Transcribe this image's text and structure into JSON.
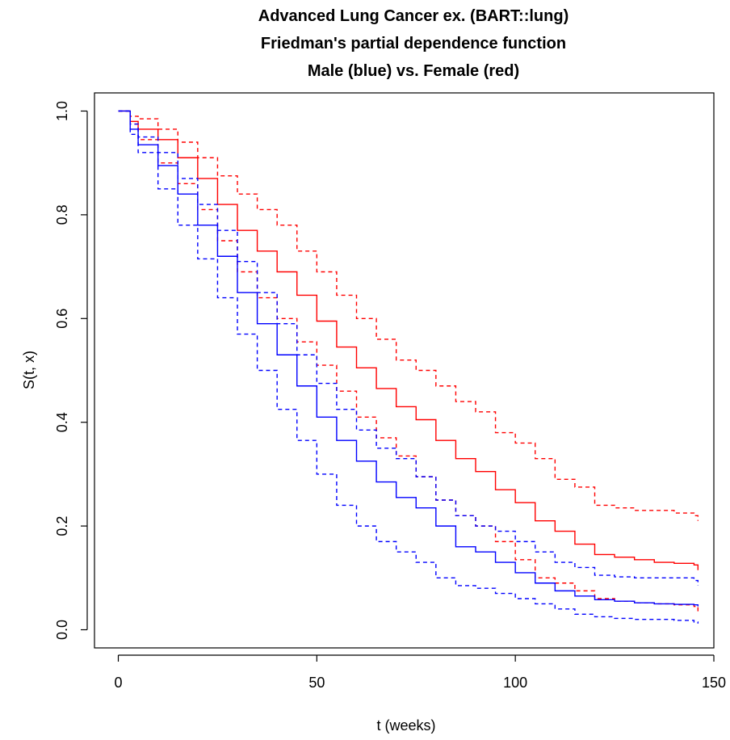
{
  "chart_data": {
    "type": "line",
    "title_lines": [
      "Advanced Lung Cancer ex. (BART::lung)",
      "Friedman's partial dependence function",
      "Male (blue) vs. Female (red)"
    ],
    "xlabel": "t (weeks)",
    "ylabel": "S(t, x)",
    "xlim": [
      -6,
      150
    ],
    "ylim": [
      -0.035,
      1.035
    ],
    "xticks": [
      0,
      50,
      100,
      150
    ],
    "yticks": [
      0.0,
      0.2,
      0.4,
      0.6,
      0.8,
      1.0
    ],
    "xtick_labels": [
      "0",
      "50",
      "100",
      "150"
    ],
    "ytick_labels": [
      "0.0",
      "0.2",
      "0.4",
      "0.6",
      "0.8",
      "1.0"
    ],
    "grid": false,
    "series": [
      {
        "color": "#FF0000",
        "style": "solid",
        "x": [
          0,
          3,
          5,
          10,
          15,
          20,
          25,
          30,
          35,
          40,
          45,
          50,
          55,
          60,
          65,
          70,
          75,
          80,
          85,
          90,
          95,
          100,
          105,
          110,
          115,
          120,
          125,
          130,
          135,
          140,
          145,
          146
        ],
        "y": [
          1.0,
          0.98,
          0.965,
          0.945,
          0.91,
          0.87,
          0.82,
          0.77,
          0.73,
          0.69,
          0.645,
          0.595,
          0.545,
          0.505,
          0.465,
          0.43,
          0.405,
          0.365,
          0.33,
          0.305,
          0.27,
          0.245,
          0.21,
          0.19,
          0.165,
          0.145,
          0.14,
          0.135,
          0.13,
          0.128,
          0.125,
          0.115
        ]
      },
      {
        "color": "#FF0000",
        "style": "dashed",
        "x": [
          0,
          3,
          5,
          10,
          15,
          20,
          25,
          30,
          35,
          40,
          45,
          50,
          55,
          60,
          65,
          70,
          75,
          80,
          85,
          90,
          95,
          100,
          105,
          110,
          115,
          120,
          125,
          130,
          135,
          140,
          145,
          146
        ],
        "y": [
          1.0,
          0.99,
          0.985,
          0.965,
          0.94,
          0.91,
          0.875,
          0.84,
          0.81,
          0.78,
          0.73,
          0.69,
          0.645,
          0.6,
          0.56,
          0.52,
          0.5,
          0.47,
          0.44,
          0.42,
          0.38,
          0.36,
          0.33,
          0.29,
          0.275,
          0.24,
          0.235,
          0.23,
          0.23,
          0.225,
          0.22,
          0.21
        ]
      },
      {
        "color": "#FF0000",
        "style": "dashed",
        "x": [
          0,
          3,
          5,
          10,
          15,
          20,
          25,
          30,
          35,
          40,
          45,
          50,
          55,
          60,
          65,
          70,
          75,
          80,
          85,
          90,
          95,
          100,
          105,
          110,
          115,
          120,
          125,
          130,
          135,
          140,
          145,
          146
        ],
        "y": [
          1.0,
          0.975,
          0.945,
          0.9,
          0.86,
          0.81,
          0.75,
          0.69,
          0.64,
          0.6,
          0.555,
          0.51,
          0.46,
          0.41,
          0.37,
          0.335,
          0.295,
          0.25,
          0.22,
          0.2,
          0.17,
          0.135,
          0.1,
          0.09,
          0.075,
          0.06,
          0.055,
          0.052,
          0.05,
          0.048,
          0.045,
          0.035
        ]
      },
      {
        "color": "#0000FF",
        "style": "solid",
        "x": [
          0,
          3,
          5,
          10,
          15,
          20,
          25,
          30,
          35,
          40,
          45,
          50,
          55,
          60,
          65,
          70,
          75,
          80,
          85,
          90,
          95,
          100,
          105,
          110,
          115,
          120,
          125,
          130,
          135,
          140,
          145,
          146
        ],
        "y": [
          1.0,
          0.965,
          0.935,
          0.895,
          0.84,
          0.78,
          0.72,
          0.65,
          0.59,
          0.53,
          0.47,
          0.41,
          0.365,
          0.325,
          0.285,
          0.255,
          0.235,
          0.2,
          0.16,
          0.15,
          0.13,
          0.11,
          0.09,
          0.075,
          0.065,
          0.058,
          0.055,
          0.052,
          0.05,
          0.049,
          0.048,
          0.045
        ]
      },
      {
        "color": "#0000FF",
        "style": "dashed",
        "x": [
          0,
          3,
          5,
          10,
          15,
          20,
          25,
          30,
          35,
          40,
          45,
          50,
          55,
          60,
          65,
          70,
          75,
          80,
          85,
          90,
          95,
          100,
          105,
          110,
          115,
          120,
          125,
          130,
          135,
          140,
          145,
          146
        ],
        "y": [
          1.0,
          0.975,
          0.95,
          0.92,
          0.87,
          0.82,
          0.77,
          0.71,
          0.65,
          0.59,
          0.53,
          0.475,
          0.425,
          0.385,
          0.35,
          0.33,
          0.295,
          0.25,
          0.22,
          0.2,
          0.19,
          0.17,
          0.15,
          0.13,
          0.12,
          0.105,
          0.102,
          0.1,
          0.1,
          0.1,
          0.095,
          0.085
        ]
      },
      {
        "color": "#0000FF",
        "style": "dashed",
        "x": [
          0,
          3,
          5,
          10,
          15,
          20,
          25,
          30,
          35,
          40,
          45,
          50,
          55,
          60,
          65,
          70,
          75,
          80,
          85,
          90,
          95,
          100,
          105,
          110,
          115,
          120,
          125,
          130,
          135,
          140,
          145,
          146
        ],
        "y": [
          1.0,
          0.955,
          0.92,
          0.85,
          0.78,
          0.715,
          0.64,
          0.57,
          0.5,
          0.425,
          0.365,
          0.3,
          0.24,
          0.2,
          0.17,
          0.15,
          0.13,
          0.1,
          0.085,
          0.08,
          0.07,
          0.06,
          0.05,
          0.04,
          0.03,
          0.025,
          0.022,
          0.02,
          0.02,
          0.018,
          0.015,
          0.012
        ]
      }
    ]
  }
}
